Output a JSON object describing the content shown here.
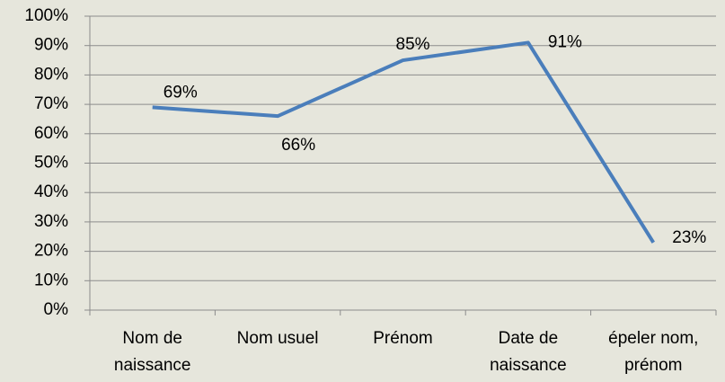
{
  "chart_data": {
    "type": "line",
    "categories": [
      "Nom de naissance",
      "Nom usuel",
      "Prénom",
      "Date de naissance",
      "épeler nom, prénom"
    ],
    "series": [
      {
        "color": "#4a7ebb",
        "values": [
          69,
          66,
          85,
          91,
          23
        ],
        "value_labels": [
          "69%",
          "66%",
          "85%",
          "91%",
          "23%"
        ]
      }
    ],
    "ylim": [
      0,
      100
    ],
    "yticks": [
      {
        "value": 0,
        "label": "0%"
      },
      {
        "value": 10,
        "label": "10%"
      },
      {
        "value": 20,
        "label": "20%"
      },
      {
        "value": 30,
        "label": "30%"
      },
      {
        "value": 40,
        "label": "40%"
      },
      {
        "value": 50,
        "label": "50%"
      },
      {
        "value": 60,
        "label": "60%"
      },
      {
        "value": 70,
        "label": "70%"
      },
      {
        "value": 80,
        "label": "80%"
      },
      {
        "value": 90,
        "label": "90%"
      },
      {
        "value": 100,
        "label": "100%"
      }
    ],
    "grid": true
  }
}
